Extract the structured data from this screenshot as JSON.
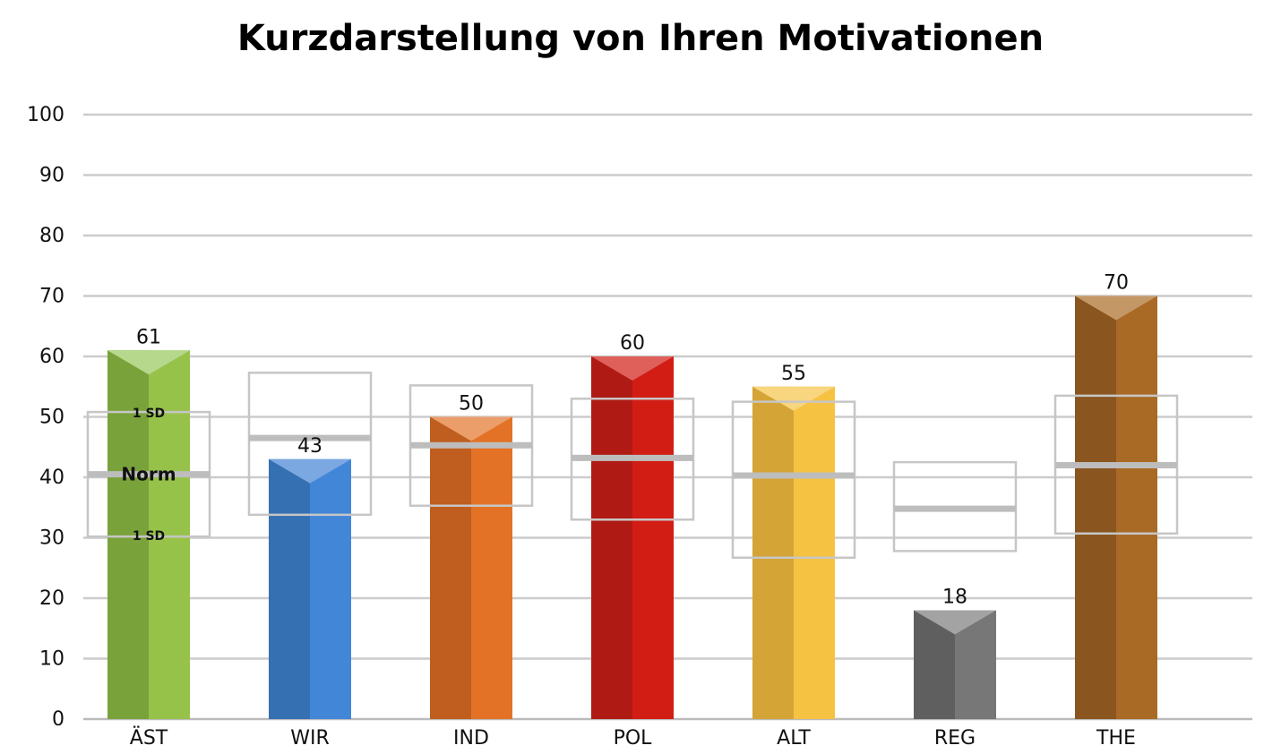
{
  "chart_data": {
    "type": "bar",
    "title": "Kurzdarstellung von Ihren Motivationen",
    "xlabel": "",
    "ylabel": "",
    "ylim": [
      0,
      100
    ],
    "yticks": [
      0,
      10,
      20,
      30,
      40,
      50,
      60,
      70,
      80,
      90,
      100
    ],
    "grid": true,
    "categories": [
      "ÄST",
      "WIR",
      "IND",
      "POL",
      "ALT",
      "REG",
      "THE"
    ],
    "values": [
      61,
      43,
      50,
      60,
      55,
      18,
      70
    ],
    "value_labels": [
      "61",
      "43",
      "50",
      "60",
      "55",
      "18",
      "70"
    ],
    "norms": [
      {
        "mean": 40.5,
        "low": 30.2,
        "high": 50.8
      },
      {
        "mean": 46.5,
        "low": 33.8,
        "high": 57.3
      },
      {
        "mean": 45.3,
        "low": 35.3,
        "high": 55.2
      },
      {
        "mean": 43.2,
        "low": 33.0,
        "high": 53.0
      },
      {
        "mean": 40.3,
        "low": 26.7,
        "high": 52.5
      },
      {
        "mean": 34.8,
        "low": 27.8,
        "high": 42.5
      },
      {
        "mean": 42.0,
        "low": 30.7,
        "high": 53.5
      }
    ],
    "annotations": {
      "norm_label": "Norm",
      "sd_upper_label": "1 SD",
      "sd_lower_label": "1 SD"
    },
    "colors": [
      {
        "left": "#7aa23a",
        "right": "#97c24a",
        "top": "#b6d88c"
      },
      {
        "left": "#3570b3",
        "right": "#4286d8",
        "top": "#7ba8e0"
      },
      {
        "left": "#bf5e1e",
        "right": "#e37226",
        "top": "#eb9d6a"
      },
      {
        "left": "#b01a14",
        "right": "#d21d15",
        "top": "#df605a"
      },
      {
        "left": "#d5a437",
        "right": "#f5c242",
        "top": "#f8d57f"
      },
      {
        "left": "#5f5f5f",
        "right": "#777777",
        "top": "#a3a3a3"
      },
      {
        "left": "#8a551f",
        "right": "#a96a25",
        "top": "#c49866"
      }
    ],
    "gridline_color": "#cccccc",
    "norm_box_color": "#c6c6c6",
    "norm_line_color": "#bdbdbd"
  }
}
